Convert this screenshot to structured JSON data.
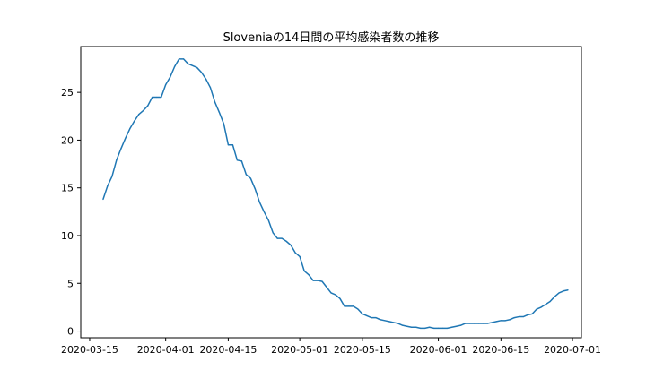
{
  "chart_data": {
    "type": "line",
    "title": "Sloveniaの14日間の平均感染者数の推移",
    "xlabel": "",
    "ylabel": "",
    "x_tick_labels": [
      "2020-03-15",
      "2020-04-01",
      "2020-04-15",
      "2020-05-01",
      "2020-05-15",
      "2020-06-01",
      "2020-06-15",
      "2020-07-01"
    ],
    "y_tick_labels": [
      "0",
      "5",
      "10",
      "15",
      "20",
      "25"
    ],
    "xlim": [
      "2020-03-13",
      "2020-07-03"
    ],
    "ylim": [
      -0.7,
      29.8
    ],
    "grid": false,
    "legend": "none",
    "line_color": "#1f77b4",
    "series": [
      {
        "x": [
          "2020-03-18",
          "2020-03-19",
          "2020-03-20",
          "2020-03-21",
          "2020-03-22",
          "2020-03-23",
          "2020-03-24",
          "2020-03-25",
          "2020-03-26",
          "2020-03-27",
          "2020-03-28",
          "2020-03-29",
          "2020-03-30",
          "2020-03-31",
          "2020-04-01",
          "2020-04-02",
          "2020-04-03",
          "2020-04-04",
          "2020-04-05",
          "2020-04-06",
          "2020-04-07",
          "2020-04-08",
          "2020-04-09",
          "2020-04-10",
          "2020-04-11",
          "2020-04-12",
          "2020-04-13",
          "2020-04-14",
          "2020-04-15",
          "2020-04-16",
          "2020-04-17",
          "2020-04-18",
          "2020-04-19",
          "2020-04-20",
          "2020-04-21",
          "2020-04-22",
          "2020-04-23",
          "2020-04-24",
          "2020-04-25",
          "2020-04-26",
          "2020-04-27",
          "2020-04-28",
          "2020-04-29",
          "2020-04-30",
          "2020-05-01",
          "2020-05-02",
          "2020-05-03",
          "2020-05-04",
          "2020-05-05",
          "2020-05-06",
          "2020-05-07",
          "2020-05-08",
          "2020-05-09",
          "2020-05-10",
          "2020-05-11",
          "2020-05-12",
          "2020-05-13",
          "2020-05-14",
          "2020-05-15",
          "2020-05-16",
          "2020-05-17",
          "2020-05-18",
          "2020-05-19",
          "2020-05-20",
          "2020-05-21",
          "2020-05-22",
          "2020-05-23",
          "2020-05-24",
          "2020-05-25",
          "2020-05-26",
          "2020-05-27",
          "2020-05-28",
          "2020-05-29",
          "2020-05-30",
          "2020-05-31",
          "2020-06-01",
          "2020-06-02",
          "2020-06-03",
          "2020-06-04",
          "2020-06-05",
          "2020-06-06",
          "2020-06-07",
          "2020-06-08",
          "2020-06-09",
          "2020-06-10",
          "2020-06-11",
          "2020-06-12",
          "2020-06-13",
          "2020-06-14",
          "2020-06-15",
          "2020-06-16",
          "2020-06-17",
          "2020-06-18",
          "2020-06-19",
          "2020-06-20",
          "2020-06-21",
          "2020-06-22",
          "2020-06-23",
          "2020-06-24",
          "2020-06-25",
          "2020-06-26",
          "2020-06-27",
          "2020-06-28",
          "2020-06-29",
          "2020-06-30"
        ],
        "values": [
          13.8,
          15.2,
          16.2,
          17.9,
          19.1,
          20.2,
          21.2,
          22.0,
          22.7,
          23.1,
          23.6,
          24.5,
          24.5,
          24.5,
          25.8,
          26.6,
          27.7,
          28.5,
          28.5,
          28.0,
          27.8,
          27.6,
          27.1,
          26.4,
          25.5,
          24.0,
          22.9,
          21.7,
          19.5,
          19.5,
          17.9,
          17.8,
          16.4,
          16.0,
          14.9,
          13.5,
          12.5,
          11.6,
          10.3,
          9.7,
          9.7,
          9.4,
          9.0,
          8.2,
          7.8,
          6.3,
          5.9,
          5.3,
          5.3,
          5.2,
          4.6,
          4.0,
          3.8,
          3.4,
          2.6,
          2.6,
          2.6,
          2.3,
          1.8,
          1.6,
          1.4,
          1.4,
          1.2,
          1.1,
          1.0,
          0.9,
          0.8,
          0.6,
          0.5,
          0.4,
          0.4,
          0.3,
          0.3,
          0.4,
          0.3,
          0.3,
          0.3,
          0.3,
          0.4,
          0.5,
          0.6,
          0.8,
          0.8,
          0.8,
          0.8,
          0.8,
          0.8,
          0.9,
          1.0,
          1.1,
          1.1,
          1.2,
          1.4,
          1.5,
          1.5,
          1.7,
          1.8,
          2.3,
          2.5,
          2.8,
          3.1,
          3.6,
          4.0,
          4.2,
          4.3
        ]
      }
    ]
  }
}
